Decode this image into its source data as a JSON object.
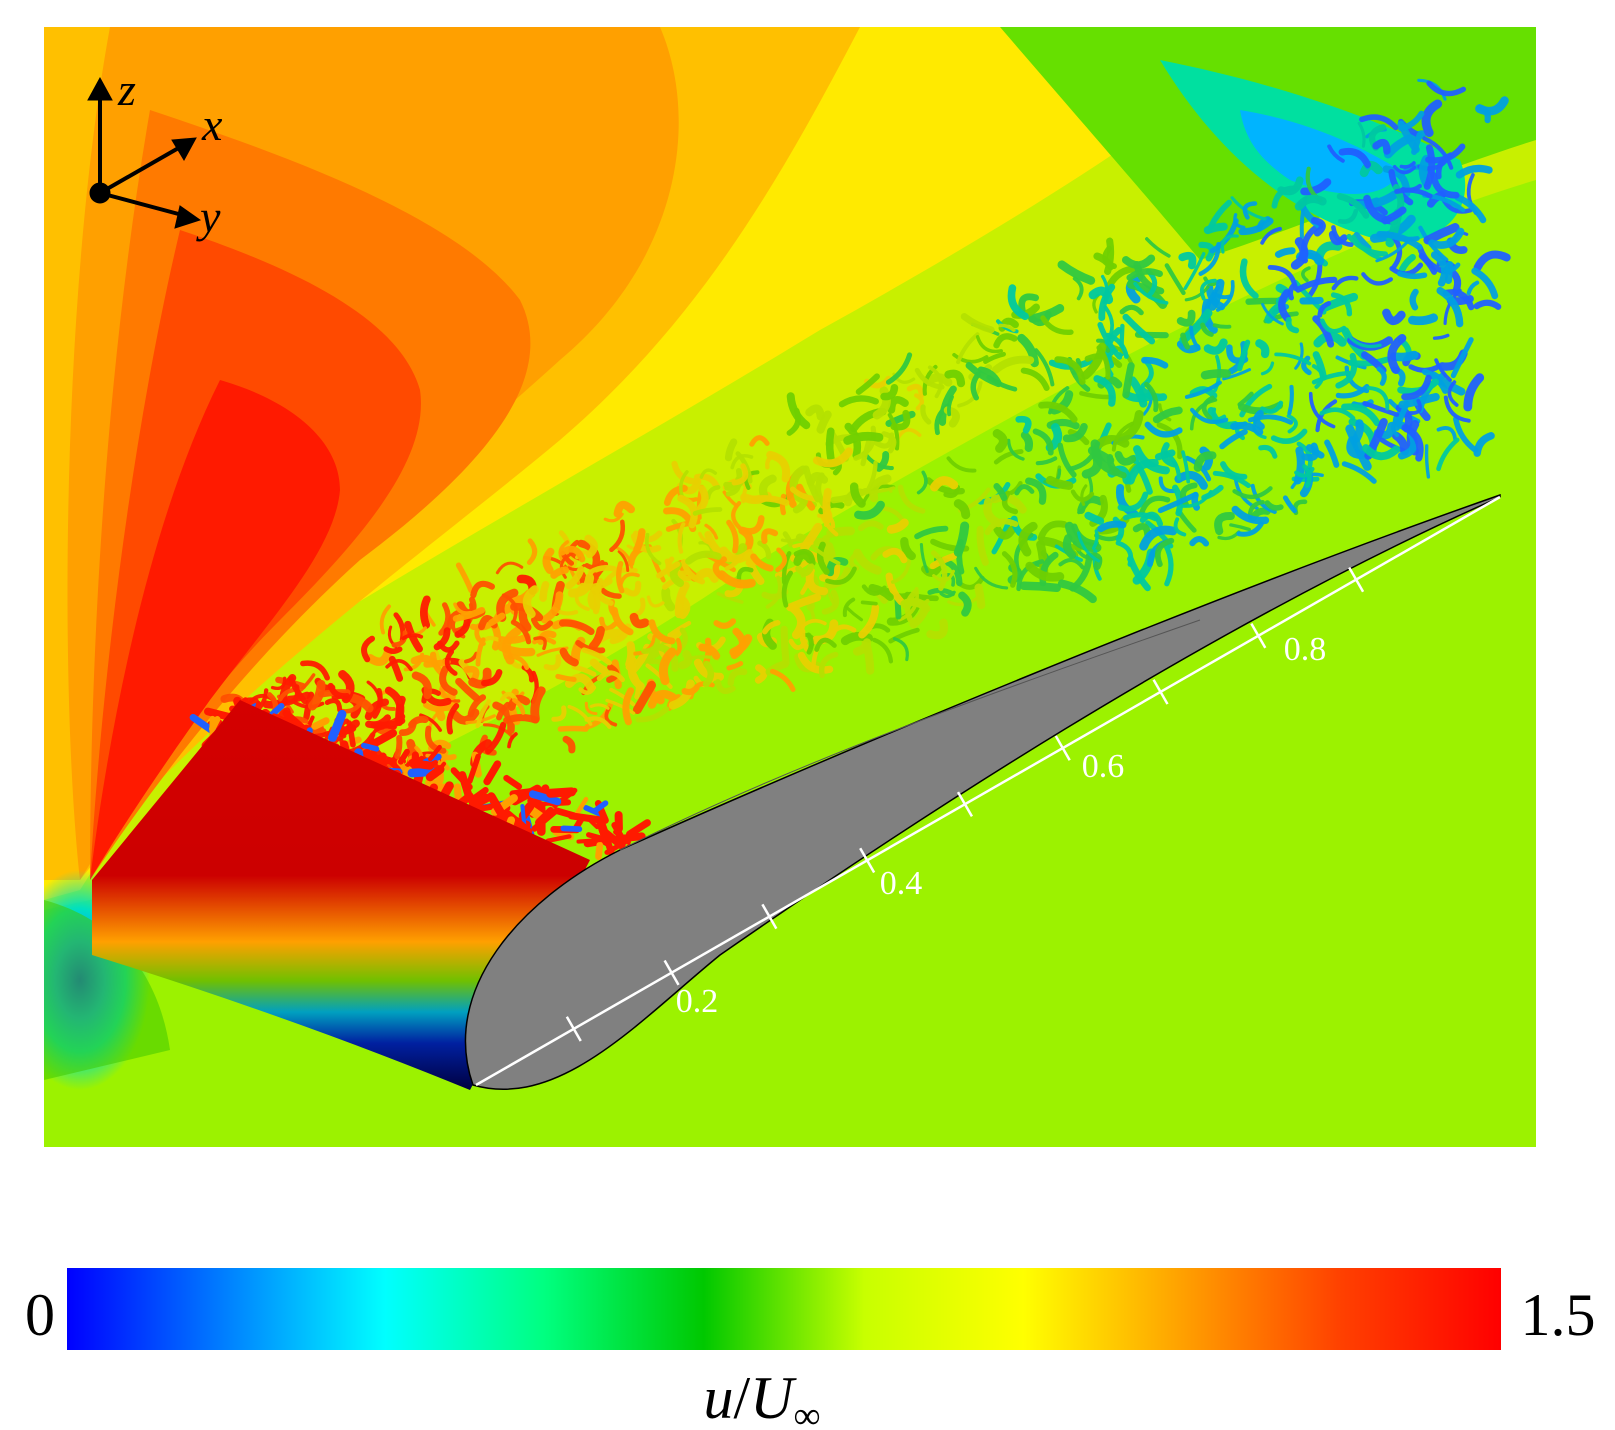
{
  "axes_triad": {
    "z": "z",
    "x": "x",
    "y": "y"
  },
  "chord_ticks": [
    "0.2",
    "0.4",
    "0.6",
    "0.8"
  ],
  "colorbar": {
    "min": "0",
    "max": "1.5",
    "label_u": "u",
    "label_slash": "/",
    "label_U": "U",
    "label_sub": "∞",
    "colors": [
      "#0000ff",
      "#0080ff",
      "#00ffff",
      "#00ff80",
      "#00c800",
      "#c8ff00",
      "#ffff00",
      "#ffa000",
      "#ff4000",
      "#ff0000"
    ]
  },
  "colors": {
    "free_stream": "#9cf200",
    "airfoil_section": "#808080",
    "stagnation_high": "#ff1a00",
    "leading_edge_low": "#00008a"
  }
}
